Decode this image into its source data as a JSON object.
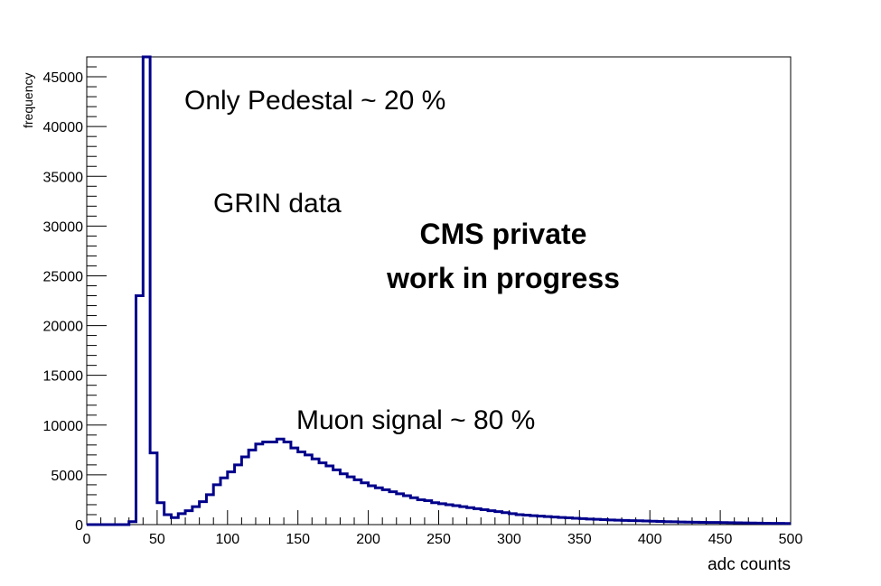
{
  "chart_data": {
    "type": "histogram",
    "xlabel": "adc counts",
    "ylabel": "frequency",
    "xlim": [
      0,
      500
    ],
    "ylim": [
      0,
      47000
    ],
    "x_ticks": [
      0,
      50,
      100,
      150,
      200,
      250,
      300,
      350,
      400,
      450,
      500
    ],
    "y_ticks": [
      0,
      5000,
      10000,
      15000,
      20000,
      25000,
      30000,
      35000,
      40000,
      45000
    ],
    "bin_width": 5,
    "bins": {
      "x": [
        0,
        5,
        10,
        15,
        20,
        25,
        30,
        35,
        40,
        45,
        50,
        55,
        60,
        65,
        70,
        75,
        80,
        85,
        90,
        95,
        100,
        105,
        110,
        115,
        120,
        125,
        130,
        135,
        140,
        145,
        150,
        155,
        160,
        165,
        170,
        175,
        180,
        185,
        190,
        195,
        200,
        205,
        210,
        215,
        220,
        225,
        230,
        235,
        240,
        245,
        250,
        255,
        260,
        265,
        270,
        275,
        280,
        285,
        290,
        295,
        300,
        305,
        310,
        315,
        320,
        325,
        330,
        335,
        340,
        345,
        350,
        355,
        360,
        365,
        370,
        375,
        380,
        385,
        390,
        395,
        400,
        405,
        410,
        415,
        420,
        425,
        430,
        435,
        440,
        445,
        450,
        455,
        460,
        465,
        470,
        475,
        480,
        485,
        490,
        495
      ],
      "values": [
        0,
        0,
        0,
        0,
        0,
        0,
        300,
        23000,
        47000,
        7200,
        2200,
        1000,
        700,
        1100,
        1400,
        1800,
        2300,
        3000,
        4000,
        4700,
        5300,
        6000,
        6800,
        7500,
        8100,
        8300,
        8300,
        8600,
        8300,
        7700,
        7300,
        7000,
        6600,
        6200,
        5900,
        5500,
        5100,
        4800,
        4500,
        4200,
        3900,
        3700,
        3500,
        3300,
        3100,
        2900,
        2700,
        2500,
        2400,
        2200,
        2100,
        2000,
        1900,
        1800,
        1700,
        1600,
        1500,
        1400,
        1300,
        1200,
        1100,
        1000,
        950,
        900,
        850,
        800,
        760,
        720,
        680,
        640,
        600,
        560,
        530,
        500,
        470,
        440,
        420,
        400,
        380,
        360,
        340,
        320,
        300,
        280,
        260,
        250,
        240,
        230,
        220,
        210,
        200,
        190,
        180,
        170,
        160,
        150,
        140,
        130,
        120,
        110
      ]
    },
    "line_color": "#00008b",
    "grid": false,
    "annotations": [
      {
        "text": "Only Pedestal ~ 20 %"
      },
      {
        "text": "GRIN data"
      },
      {
        "text": "CMS private"
      },
      {
        "text": "work in progress"
      },
      {
        "text": "Muon signal ~ 80 %"
      }
    ]
  }
}
